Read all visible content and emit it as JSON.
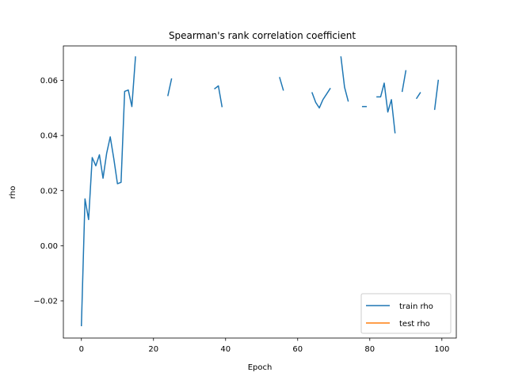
{
  "chart_data": {
    "type": "line",
    "title": "Spearman's rank correlation coefficient",
    "xlabel": "Epoch",
    "ylabel": "rho",
    "xlim": [
      -5,
      104
    ],
    "ylim": [
      -0.0335,
      0.0725
    ],
    "x_ticks": [
      0,
      20,
      40,
      60,
      80,
      100
    ],
    "y_ticks": [
      -0.02,
      0.0,
      0.02,
      0.04,
      0.06
    ],
    "x_tick_labels": [
      "0",
      "20",
      "40",
      "60",
      "80",
      "100"
    ],
    "y_tick_labels": [
      "−0.02",
      "0.00",
      "0.02",
      "0.04",
      "0.06"
    ],
    "grid": false,
    "legend_position": "lower-right",
    "series": [
      {
        "name": "train rho",
        "color": "#1f77b4",
        "x": [
          0,
          1,
          2,
          3,
          4,
          5,
          6,
          7,
          8,
          9,
          10,
          11,
          12,
          13,
          14,
          15,
          16,
          17,
          18,
          19,
          20,
          21,
          22,
          23,
          24,
          25,
          26,
          27,
          28,
          29,
          30,
          31,
          32,
          33,
          34,
          35,
          36,
          37,
          38,
          39,
          40,
          41,
          42,
          43,
          44,
          45,
          46,
          47,
          48,
          49,
          50,
          51,
          52,
          53,
          54,
          55,
          56,
          57,
          58,
          59,
          60,
          61,
          62,
          63,
          64,
          65,
          66,
          67,
          68,
          69,
          70,
          71,
          72,
          73,
          74,
          75,
          76,
          77,
          78,
          79,
          80,
          81,
          82,
          83,
          84,
          85,
          86,
          87,
          88,
          89,
          90,
          91,
          92,
          93,
          94,
          95,
          96,
          97,
          98,
          99
        ],
        "y": [
          -0.029,
          0.017,
          0.0095,
          0.032,
          0.029,
          0.033,
          0.0245,
          0.0335,
          0.0395,
          0.0315,
          0.0225,
          0.023,
          0.056,
          0.0565,
          0.0505,
          0.0685,
          null,
          null,
          null,
          null,
          null,
          null,
          null,
          null,
          0.0545,
          0.0605,
          null,
          null,
          null,
          null,
          null,
          null,
          null,
          null,
          null,
          null,
          null,
          0.057,
          0.058,
          0.0505,
          null,
          null,
          null,
          null,
          null,
          null,
          null,
          null,
          null,
          null,
          null,
          null,
          null,
          null,
          null,
          0.061,
          0.0565,
          null,
          null,
          null,
          null,
          null,
          null,
          null,
          0.0555,
          0.052,
          0.05,
          0.053,
          0.055,
          0.057,
          null,
          null,
          0.0685,
          0.0575,
          0.0525,
          null,
          null,
          null,
          0.0505,
          0.0505,
          null,
          null,
          0.054,
          0.054,
          0.059,
          0.0485,
          0.053,
          0.041,
          null,
          0.056,
          0.0635,
          null,
          null,
          0.0535,
          0.0555,
          null,
          null,
          null,
          0.0495,
          0.06
        ]
      },
      {
        "name": "test rho",
        "color": "#ff7f0e",
        "x": [],
        "y": []
      }
    ]
  }
}
